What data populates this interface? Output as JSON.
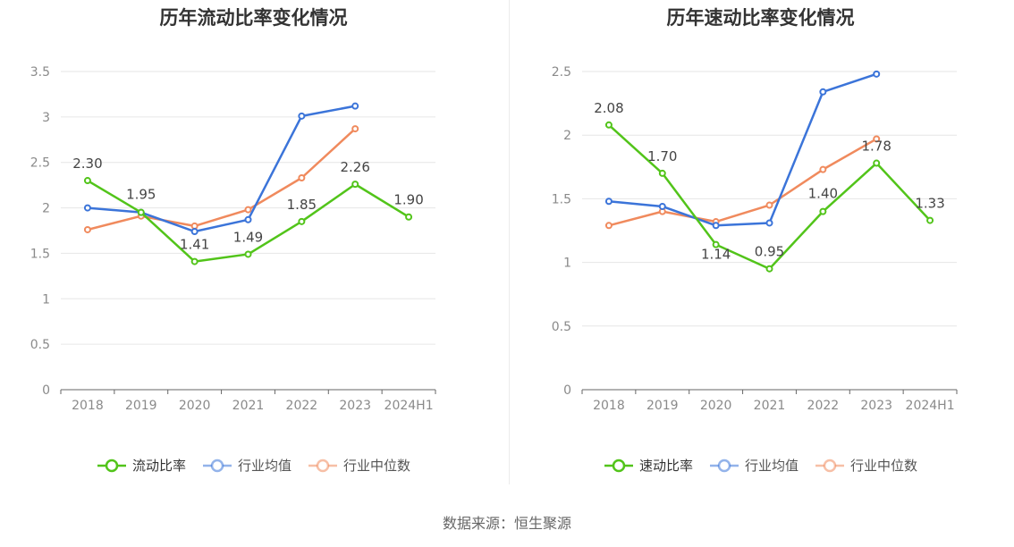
{
  "source": "数据来源：恒生聚源",
  "chart_data": [
    {
      "type": "line",
      "title": "历年流动比率变化情况",
      "categories": [
        "2018",
        "2019",
        "2020",
        "2021",
        "2022",
        "2023",
        "2024H1"
      ],
      "ylim": [
        0,
        3.5
      ],
      "yticks": [
        "0",
        "0.5",
        "1",
        "1.5",
        "2",
        "2.5",
        "3",
        "3.5"
      ],
      "grid": true,
      "legend_position": "bottom",
      "series": [
        {
          "name": "流动比率",
          "color": "#52c41a",
          "values": [
            2.3,
            1.95,
            1.41,
            1.49,
            1.85,
            2.26,
            1.9
          ],
          "labels": [
            "2.30",
            "1.95",
            "1.41",
            "1.49",
            "1.85",
            "2.26",
            "1.90"
          ]
        },
        {
          "name": "行业均值",
          "color": "#3b74d9",
          "values": [
            2.0,
            1.95,
            1.74,
            1.87,
            3.01,
            3.12,
            null
          ]
        },
        {
          "name": "行业中位数",
          "color": "#f08a5d",
          "values": [
            1.76,
            1.91,
            1.8,
            1.98,
            2.33,
            2.87,
            null
          ]
        }
      ]
    },
    {
      "type": "line",
      "title": "历年速动比率变化情况",
      "categories": [
        "2018",
        "2019",
        "2020",
        "2021",
        "2022",
        "2023",
        "2024H1"
      ],
      "ylim": [
        0,
        2.5
      ],
      "yticks": [
        "0",
        "0.5",
        "1",
        "1.5",
        "2",
        "2.5"
      ],
      "grid": true,
      "legend_position": "bottom",
      "series": [
        {
          "name": "速动比率",
          "color": "#52c41a",
          "values": [
            2.08,
            1.7,
            1.14,
            0.95,
            1.4,
            1.78,
            1.33
          ],
          "labels": [
            "2.08",
            "1.70",
            "1.14",
            "0.95",
            "1.40",
            "1.78",
            "1.33"
          ]
        },
        {
          "name": "行业均值",
          "color": "#3b74d9",
          "values": [
            1.48,
            1.44,
            1.29,
            1.31,
            2.34,
            2.48,
            null
          ]
        },
        {
          "name": "行业中位数",
          "color": "#f08a5d",
          "values": [
            1.29,
            1.4,
            1.32,
            1.45,
            1.73,
            1.97,
            null
          ]
        }
      ]
    }
  ]
}
